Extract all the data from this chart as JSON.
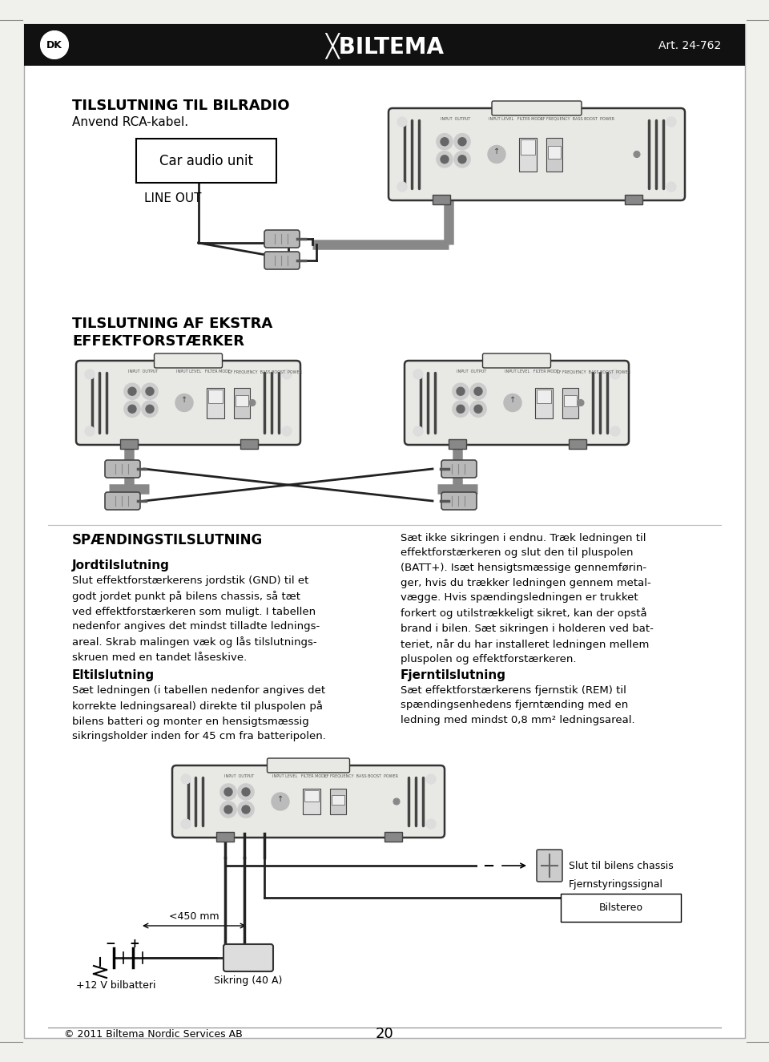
{
  "page_bg": "#f0f0ec",
  "header_bg": "#111111",
  "body_bg": "#ffffff",
  "header_art": "Art. 24-762",
  "section1_title": "TILSLUTNING TIL BILRADIO",
  "section1_sub": "Anvend RCA-kabel.",
  "section1_box_label": "Car audio unit",
  "section1_line_out": "LINE OUT",
  "section2_title1": "TILSLUTNING AF EKSTRA",
  "section2_title2": "EFFEKTFORSTÆRKER",
  "section3_title": "SPÆNDINGSTILSLUTNING",
  "section3_sub1_title": "Jordtilslutning",
  "section3_sub1_text": "Slut effektforstærkerens jordstik (GND) til et\ngodt jordet punkt på bilens chassis, så tæt\nved effektforstærkeren som muligt. I tabellen\nnedenfor angives det mindst tilladte lednings-\nareal. Skrab malingen væk og lås tilslutnings-\nskruen med en tandet låseskive.",
  "section3_sub2_title": "Eltilslutning",
  "section3_sub2_text": "Sæt ledningen (i tabellen nedenfor angives det\nkorrekte ledningsareal) direkte til pluspolen på\nbilens batteri og monter en hensigtsmæssig\nsikringsholder inden for 45 cm fra batteripolen.",
  "section3_right_text": "Sæt ikke sikringen i endnu. Træk ledningen til\neffektforstærkeren og slut den til pluspolen\n(BATT+). Isæt hensigtsmæssige gennemførin-\nger, hvis du trækker ledningen gennem metal-\nvægge. Hvis spændingsledningen er trukket\nforkert og utilstrækkeligt sikret, kan der opstå\nbrand i bilen. Sæt sikringen i holderen ved bat-\nteriet, når du har installeret ledningen mellem\npluspolen og effektforstærkeren.",
  "section3_sub3_title": "Fjerntilslutning",
  "section3_sub3_text": "Sæt effektforstærkerens fjernstik (REM) til\nspændingsenhedens fjerntænding med en\nledning med mindst 0,8 mm² ledningsareal.",
  "footer_left": "© 2011 Biltema Nordic Services AB",
  "footer_center": "20",
  "lbl_slut": "Slut til bilens chassis",
  "lbl_450": "<450 mm",
  "lbl_fjernstyring": "Fjernstyringssignal",
  "lbl_bilstereo": "Bilstereo",
  "lbl_sikring": "Sikring (40 A)",
  "lbl_batteri": "+12 V bilbatteri",
  "gray_wire": "#888888",
  "black_wire": "#222222",
  "amp_fill": "#e8e8e4",
  "amp_edge": "#333333"
}
